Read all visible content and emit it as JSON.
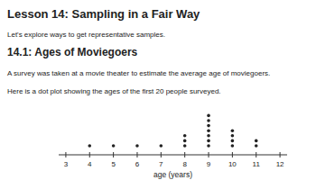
{
  "header": {
    "title": "Lesson 14: Sampling in a Fair Way",
    "subtitle": "Let's explore ways to get representative samples."
  },
  "section": {
    "title": "14.1: Ages of Moviegoers",
    "paragraphs": [
      "A survey was taken at a movie theater to estimate the average age of moviegoers.",
      "Here is a dot plot showing the ages of the first 20 people surveyed."
    ]
  },
  "chart_data": {
    "type": "dot",
    "x": [
      4,
      5,
      6,
      7,
      8,
      9,
      10,
      11
    ],
    "values": [
      1,
      1,
      1,
      1,
      3,
      7,
      4,
      2
    ],
    "color": "#222222",
    "xlabel": "age (years)",
    "xlim": [
      2.7,
      12.3
    ],
    "xticks": [
      3,
      4,
      5,
      6,
      7,
      8,
      9,
      10,
      11,
      12
    ],
    "tick_labels": "x"
  }
}
